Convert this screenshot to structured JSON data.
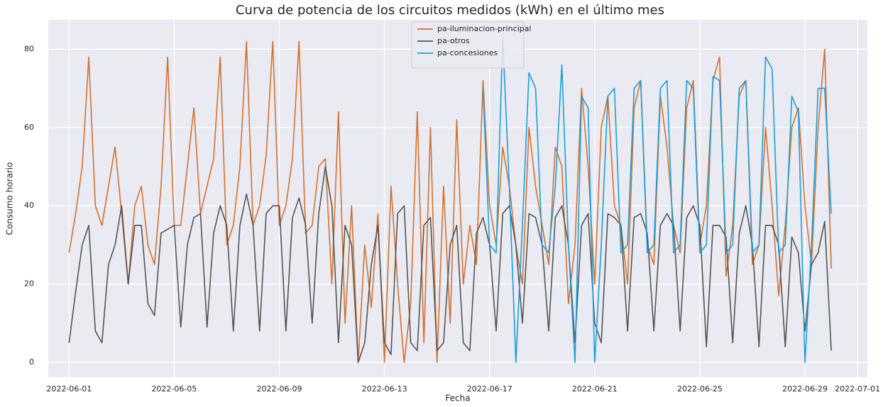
{
  "chart_data": {
    "type": "line",
    "title": "Curva de potencia de los circuitos medidos (kWh) en el último mes",
    "x_label": "Fecha",
    "y_label": "Consumo horario",
    "x": [
      "2022-06-01 00:00",
      "2022-06-01 06:00",
      "2022-06-01 12:00",
      "2022-06-01 18:00",
      "2022-06-02 00:00",
      "2022-06-02 06:00",
      "2022-06-02 12:00",
      "2022-06-02 18:00",
      "2022-06-03 00:00",
      "2022-06-03 06:00",
      "2022-06-03 12:00",
      "2022-06-03 18:00",
      "2022-06-04 00:00",
      "2022-06-04 06:00",
      "2022-06-04 12:00",
      "2022-06-04 18:00",
      "2022-06-05 00:00",
      "2022-06-05 06:00",
      "2022-06-05 12:00",
      "2022-06-05 18:00",
      "2022-06-06 00:00",
      "2022-06-06 06:00",
      "2022-06-06 12:00",
      "2022-06-06 18:00",
      "2022-06-07 00:00",
      "2022-06-07 06:00",
      "2022-06-07 12:00",
      "2022-06-07 18:00",
      "2022-06-08 00:00",
      "2022-06-08 06:00",
      "2022-06-08 12:00",
      "2022-06-08 18:00",
      "2022-06-09 00:00",
      "2022-06-09 06:00",
      "2022-06-09 12:00",
      "2022-06-09 18:00",
      "2022-06-10 00:00",
      "2022-06-10 06:00",
      "2022-06-10 12:00",
      "2022-06-10 18:00",
      "2022-06-11 00:00",
      "2022-06-11 06:00",
      "2022-06-11 12:00",
      "2022-06-11 18:00",
      "2022-06-12 00:00",
      "2022-06-12 06:00",
      "2022-06-12 12:00",
      "2022-06-12 18:00",
      "2022-06-13 00:00",
      "2022-06-13 06:00",
      "2022-06-13 12:00",
      "2022-06-13 18:00",
      "2022-06-14 00:00",
      "2022-06-14 06:00",
      "2022-06-14 12:00",
      "2022-06-14 18:00",
      "2022-06-15 00:00",
      "2022-06-15 06:00",
      "2022-06-15 12:00",
      "2022-06-15 18:00",
      "2022-06-16 00:00",
      "2022-06-16 06:00",
      "2022-06-16 12:00",
      "2022-06-16 18:00",
      "2022-06-17 00:00",
      "2022-06-17 06:00",
      "2022-06-17 12:00",
      "2022-06-17 18:00",
      "2022-06-18 00:00",
      "2022-06-18 06:00",
      "2022-06-18 12:00",
      "2022-06-18 18:00",
      "2022-06-19 00:00",
      "2022-06-19 06:00",
      "2022-06-19 12:00",
      "2022-06-19 18:00",
      "2022-06-20 00:00",
      "2022-06-20 06:00",
      "2022-06-20 12:00",
      "2022-06-20 18:00",
      "2022-06-21 00:00",
      "2022-06-21 06:00",
      "2022-06-21 12:00",
      "2022-06-21 18:00",
      "2022-06-22 00:00",
      "2022-06-22 06:00",
      "2022-06-22 12:00",
      "2022-06-22 18:00",
      "2022-06-23 00:00",
      "2022-06-23 06:00",
      "2022-06-23 12:00",
      "2022-06-23 18:00",
      "2022-06-24 00:00",
      "2022-06-24 06:00",
      "2022-06-24 12:00",
      "2022-06-24 18:00",
      "2022-06-25 00:00",
      "2022-06-25 06:00",
      "2022-06-25 12:00",
      "2022-06-25 18:00",
      "2022-06-26 00:00",
      "2022-06-26 06:00",
      "2022-06-26 12:00",
      "2022-06-26 18:00",
      "2022-06-27 00:00",
      "2022-06-27 06:00",
      "2022-06-27 12:00",
      "2022-06-27 18:00",
      "2022-06-28 00:00",
      "2022-06-28 06:00",
      "2022-06-28 12:00",
      "2022-06-28 18:00",
      "2022-06-29 00:00",
      "2022-06-29 06:00",
      "2022-06-29 12:00",
      "2022-06-29 18:00",
      "2022-06-30 00:00"
    ],
    "series": [
      {
        "name": "pa-iluminacion-principal",
        "color": "#d2722e",
        "values": [
          28,
          38,
          50,
          78,
          40,
          35,
          45,
          55,
          38,
          20,
          40,
          45,
          30,
          25,
          45,
          78,
          35,
          35,
          50,
          65,
          38,
          45,
          52,
          78,
          30,
          35,
          50,
          82,
          35,
          40,
          53,
          82,
          35,
          40,
          52,
          82,
          33,
          35,
          50,
          52,
          20,
          64,
          10,
          40,
          0,
          30,
          14,
          38,
          0,
          45,
          20,
          0,
          15,
          64,
          5,
          60,
          0,
          45,
          10,
          62,
          20,
          35,
          25,
          72,
          40,
          30,
          55,
          45,
          30,
          20,
          60,
          45,
          35,
          25,
          55,
          50,
          15,
          30,
          70,
          50,
          20,
          60,
          68,
          40,
          35,
          20,
          65,
          72,
          30,
          25,
          68,
          55,
          35,
          28,
          65,
          72,
          30,
          40,
          72,
          78,
          22,
          35,
          68,
          72,
          25,
          30,
          60,
          40,
          17,
          35,
          60,
          65,
          40,
          25,
          60,
          80,
          24
        ]
      },
      {
        "name": "pa-otros",
        "color": "#555555",
        "values": [
          5,
          18,
          30,
          35,
          8,
          5,
          25,
          30,
          40,
          20,
          35,
          35,
          15,
          12,
          33,
          34,
          35,
          9,
          30,
          37,
          38,
          9,
          33,
          40,
          35,
          8,
          35,
          43,
          35,
          8,
          38,
          40,
          40,
          8,
          37,
          42,
          35,
          10,
          38,
          50,
          40,
          5,
          35,
          30,
          0,
          5,
          25,
          35,
          5,
          2,
          38,
          40,
          5,
          3,
          35,
          37,
          3,
          5,
          30,
          35,
          5,
          3,
          33,
          37,
          30,
          8,
          38,
          40,
          30,
          10,
          38,
          37,
          30,
          8,
          37,
          40,
          30,
          5,
          35,
          38,
          10,
          5,
          38,
          37,
          35,
          8,
          37,
          38,
          33,
          8,
          35,
          38,
          35,
          8,
          37,
          40,
          35,
          4,
          35,
          35,
          32,
          5,
          33,
          40,
          30,
          4,
          35,
          35,
          30,
          4,
          32,
          28,
          8,
          25,
          28,
          36,
          3
        ]
      },
      {
        "name": "pa-concesiones",
        "color": "#1a9fd8",
        "values": [
          null,
          null,
          null,
          null,
          null,
          null,
          null,
          null,
          null,
          null,
          null,
          null,
          null,
          null,
          null,
          null,
          null,
          null,
          null,
          null,
          null,
          null,
          null,
          null,
          null,
          null,
          null,
          null,
          null,
          null,
          null,
          null,
          null,
          null,
          null,
          null,
          null,
          null,
          null,
          null,
          null,
          null,
          null,
          null,
          null,
          null,
          null,
          null,
          null,
          null,
          null,
          null,
          null,
          null,
          null,
          null,
          null,
          null,
          null,
          null,
          null,
          null,
          null,
          70,
          30,
          28,
          83,
          45,
          0,
          35,
          74,
          70,
          30,
          28,
          45,
          76,
          30,
          0,
          68,
          65,
          0,
          30,
          68,
          70,
          28,
          30,
          70,
          72,
          28,
          30,
          70,
          72,
          28,
          30,
          72,
          70,
          28,
          30,
          73,
          72,
          28,
          30,
          70,
          72,
          28,
          30,
          78,
          75,
          28,
          30,
          68,
          64,
          0,
          30,
          70,
          70,
          38
        ]
      }
    ],
    "xlim": [
      "2022-05-31 05:00",
      "2022-07-01 09:00"
    ],
    "xticks": [
      "2022-06-01",
      "2022-06-05",
      "2022-06-09",
      "2022-06-13",
      "2022-06-17",
      "2022-06-21",
      "2022-06-25",
      "2022-06-29",
      "2022-07-01"
    ],
    "ylim": [
      -3.8,
      87.5
    ],
    "yticks": [
      0,
      20,
      40,
      60,
      80
    ],
    "grid": true,
    "legend": "upper center"
  }
}
